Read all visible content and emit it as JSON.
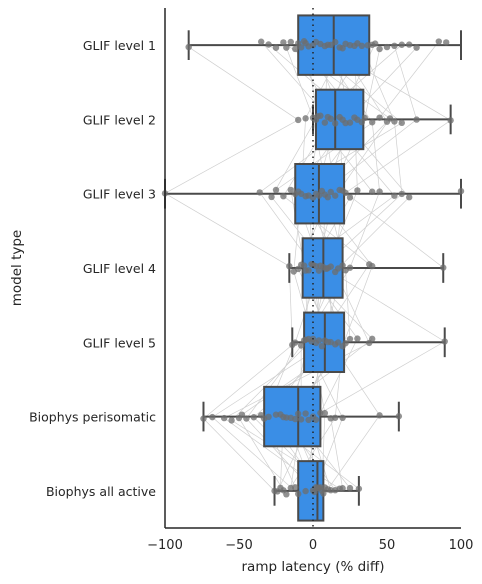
{
  "chart_data": {
    "type": "boxplot",
    "orientation": "horizontal",
    "xlabel": "ramp latency (% diff)",
    "ylabel": "model type",
    "xlim": [
      -100,
      100
    ],
    "xticks": [
      -100,
      -50,
      0,
      50,
      100
    ],
    "xtick_labels": [
      "−100",
      "−50",
      "0",
      "50",
      "100"
    ],
    "reference_line_x": 0,
    "grid": false,
    "colors": {
      "box": "#3a8ee6",
      "box_edge": "#4a4a4a",
      "points": "#6d6d6d",
      "paired_lines": "#cfcfcf",
      "axis": "#262626"
    },
    "categories": [
      "GLIF level 1",
      "GLIF level 2",
      "GLIF level 3",
      "GLIF level 4",
      "GLIF level 5",
      "Biophys perisomatic",
      "Biophys all active"
    ],
    "boxes": [
      {
        "whisker_low": -84,
        "q1": -10,
        "median": 14,
        "q3": 38,
        "whisker_high": 100
      },
      {
        "whisker_low": 0,
        "q1": 2,
        "median": 15,
        "q3": 34,
        "whisker_high": 93
      },
      {
        "whisker_low": -100,
        "q1": -12,
        "median": 4,
        "q3": 21,
        "whisker_high": 100
      },
      {
        "whisker_low": -16,
        "q1": -7,
        "median": 7,
        "q3": 20,
        "whisker_high": 88
      },
      {
        "whisker_low": -14,
        "q1": -6,
        "median": 8,
        "q3": 21,
        "whisker_high": 89
      },
      {
        "whisker_low": -74,
        "q1": -33,
        "median": -10,
        "q3": 5,
        "whisker_high": 58
      },
      {
        "whisker_low": -26,
        "q1": -10,
        "median": 3,
        "q3": 7,
        "whisker_high": 31
      }
    ],
    "points": [
      [
        -84,
        -35,
        -30,
        -25,
        -20,
        -18,
        -15,
        -12,
        -10,
        -8,
        -6,
        -5,
        -3,
        0,
        2,
        5,
        8,
        10,
        12,
        15,
        18,
        20,
        22,
        25,
        28,
        30,
        33,
        37,
        40,
        42,
        45,
        50,
        55,
        60,
        65,
        70,
        85,
        90
      ],
      [
        -10,
        -5,
        0,
        2,
        3,
        5,
        8,
        10,
        12,
        15,
        18,
        20,
        22,
        25,
        28,
        30,
        33,
        35,
        40,
        45,
        50,
        52,
        55,
        60,
        70,
        93
      ],
      [
        -100,
        -36,
        -28,
        -25,
        -20,
        -15,
        -12,
        -10,
        -8,
        -5,
        -3,
        0,
        2,
        4,
        6,
        8,
        10,
        12,
        15,
        18,
        20,
        22,
        25,
        30,
        40,
        45,
        55,
        60,
        65,
        100
      ],
      [
        -16,
        -13,
        -10,
        -8,
        -6,
        -5,
        -3,
        -1,
        0,
        2,
        4,
        5,
        7,
        9,
        10,
        12,
        15,
        17,
        20,
        22,
        25,
        38,
        40,
        88
      ],
      [
        -14,
        -12,
        -8,
        -6,
        -5,
        -3,
        -1,
        0,
        2,
        4,
        6,
        8,
        10,
        12,
        15,
        17,
        20,
        22,
        25,
        30,
        38,
        40,
        89
      ],
      [
        -74,
        -68,
        -60,
        -55,
        -50,
        -48,
        -45,
        -40,
        -35,
        -33,
        -30,
        -25,
        -22,
        -20,
        -18,
        -15,
        -12,
        -10,
        -8,
        -5,
        -3,
        0,
        2,
        5,
        8,
        12,
        15,
        20,
        45,
        58
      ],
      [
        -26,
        -24,
        -22,
        -20,
        -18,
        -15,
        -12,
        -10,
        -5,
        0,
        1,
        2,
        3,
        4,
        5,
        6,
        7,
        8,
        10,
        12,
        15,
        18,
        20,
        25,
        31
      ]
    ]
  }
}
